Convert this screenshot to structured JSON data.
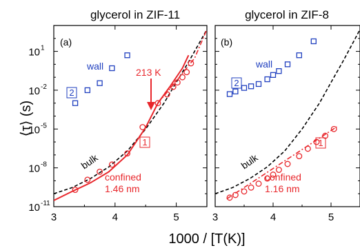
{
  "figure": {
    "ylabel": "⟨τ⟩ (s)",
    "xlabel": "1000 / [T(K)]"
  },
  "chart_data": [
    {
      "type": "scatter",
      "title": "glycerol in ZIF-11",
      "panel_label": "(a)",
      "xlim": [
        3,
        5.5
      ],
      "ylim_log10": [
        -11,
        3
      ],
      "y_scale": "log",
      "xticks": [
        3,
        4,
        5
      ],
      "xtick_labels": [
        "3",
        "4",
        "5"
      ],
      "yticks_log10": [
        -11,
        -8,
        -5,
        -2,
        1
      ],
      "ytick_labels": [
        "10",
        "10",
        "10",
        "10",
        "10"
      ],
      "ytick_exponents": [
        "-11",
        "-8",
        "-5",
        "-2",
        "1"
      ],
      "annotations": {
        "wall": "wall",
        "bulk": "bulk",
        "confined": "confined",
        "size": "1.46 nm",
        "temp": "213 K",
        "box_wall": "2",
        "box_confined": "1"
      },
      "colors": {
        "wall": "#1f3fbf",
        "confined": "#e8262b",
        "bulk": "#000000"
      },
      "series": [
        {
          "name": "wall",
          "marker": "square",
          "x": [
            3.35,
            3.55,
            3.75,
            3.95,
            4.2
          ],
          "y": [
            0.001,
            0.01,
            0.035,
            0.5,
            5
          ]
        },
        {
          "name": "confined",
          "marker": "circle",
          "x": [
            3.35,
            3.55,
            3.75,
            3.95,
            4.2,
            4.45,
            4.7,
            4.85,
            4.95,
            5.02,
            5.1,
            5.17,
            5.24
          ],
          "y": [
            2e-10,
            1.2e-09,
            5e-09,
            1.8e-08,
            1.3e-07,
            1.4e-05,
            0.001,
            0.0048,
            0.018,
            0.04,
            0.1,
            0.25,
            1.2
          ]
        }
      ],
      "lines": [
        {
          "name": "bulk",
          "style": "dashed",
          "x": [
            3.0,
            3.3,
            3.6,
            3.9,
            4.2,
            4.5,
            4.8,
            5.0,
            5.2,
            5.4,
            5.5
          ],
          "y": [
            1e-10,
            3e-10,
            1.5e-09,
            1.2e-08,
            2e-07,
            1e-05,
            0.001,
            0.04,
            1.5,
            70,
            500
          ]
        },
        {
          "name": "confined VFT",
          "style": "solid",
          "x": [
            3.0,
            3.3,
            3.6,
            3.9,
            4.2,
            4.5,
            4.7,
            4.9,
            5.1,
            5.2
          ],
          "y": [
            3e-11,
            1.5e-10,
            7e-10,
            5e-09,
            1e-07,
            1.3e-05,
            0.001,
            0.02,
            0.5,
            5
          ]
        },
        {
          "name": "confined Arrhenius",
          "style": "dashdot",
          "x": [
            4.7,
            5.0,
            5.3,
            5.5
          ],
          "y": [
            0.001,
            0.05,
            3,
            500
          ]
        }
      ]
    },
    {
      "type": "scatter",
      "title": "glycerol in ZIF-8",
      "panel_label": "(b)",
      "xlim": [
        3,
        5.5
      ],
      "ylim_log10": [
        -11,
        3
      ],
      "y_scale": "log",
      "xticks": [
        3,
        4,
        5
      ],
      "xtick_labels": [
        "3",
        "4",
        "5"
      ],
      "annotations": {
        "wall": "wall",
        "bulk": "bulk",
        "confined": "confined",
        "size": "1.16 nm",
        "box_wall": "2",
        "box_confined": "1"
      },
      "colors": {
        "wall": "#1f3fbf",
        "confined": "#e8262b",
        "bulk": "#000000"
      },
      "series": [
        {
          "name": "wall",
          "marker": "square",
          "x": [
            3.25,
            3.35,
            3.5,
            3.62,
            3.75,
            3.9,
            4.0,
            4.1,
            4.25,
            4.45,
            4.7
          ],
          "y": [
            0.005,
            0.008,
            0.015,
            0.02,
            0.03,
            0.07,
            0.15,
            0.3,
            1.0,
            5.0,
            60
          ]
        },
        {
          "name": "confined",
          "marker": "circle",
          "x": [
            3.25,
            3.35,
            3.5,
            3.62,
            3.75,
            3.9,
            4.0,
            4.1,
            4.25,
            4.45,
            4.6,
            4.75,
            4.9,
            5.05
          ],
          "y": [
            5e-11,
            8e-11,
            1.5e-10,
            3e-10,
            6e-10,
            1.5e-09,
            3e-09,
            7e-09,
            2e-08,
            8e-08,
            3e-07,
            1e-06,
            3e-06,
            1e-05
          ]
        }
      ],
      "lines": [
        {
          "name": "bulk",
          "style": "dashed",
          "x": [
            3.0,
            3.3,
            3.6,
            3.9,
            4.2,
            4.5,
            4.8,
            5.0,
            5.2,
            5.4,
            5.5
          ],
          "y": [
            1e-10,
            3e-10,
            1.5e-09,
            1.2e-08,
            2e-07,
            1e-05,
            0.001,
            0.04,
            1.5,
            70,
            500
          ]
        },
        {
          "name": "confined Arrhenius",
          "style": "dashdot",
          "x": [
            3.2,
            5.1
          ],
          "y": [
            4e-11,
            1.5e-05
          ]
        }
      ]
    }
  ]
}
